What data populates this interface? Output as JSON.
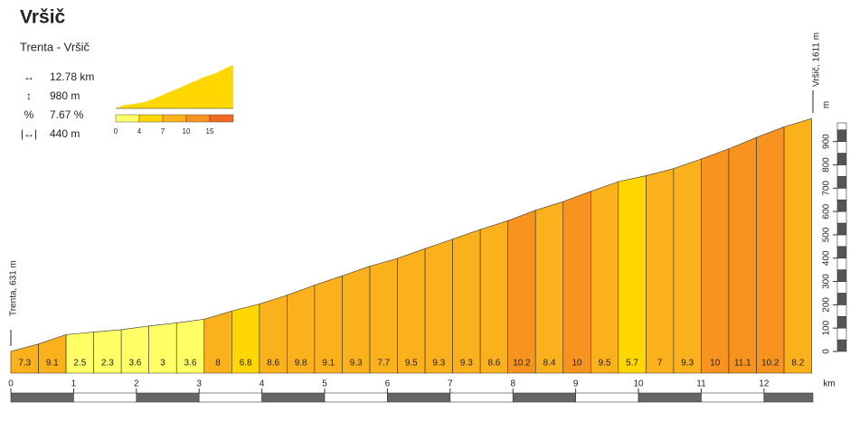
{
  "chart_data": {
    "type": "profile",
    "title": "Vršič",
    "subtitle": "Trenta - Vršič",
    "start_label": "Trenta, 631 m",
    "end_label": "Vršič, 1611 m",
    "stats": [
      {
        "icon": "↔",
        "label": "12.78 km"
      },
      {
        "icon": "↕",
        "label": "980 m"
      },
      {
        "icon": "%",
        "label": "7.67 %"
      },
      {
        "icon": "|↔|",
        "label": "440 m",
        "value": 0.44
      }
    ],
    "values": [
      7.3,
      9.1,
      2.5,
      2.3,
      3.6,
      3,
      3.6,
      8,
      6.8,
      8.6,
      9.8,
      9.1,
      9.3,
      7.7,
      9.5,
      9.3,
      9.3,
      8.6,
      10.2,
      8.4,
      10,
      9.5,
      5.7,
      7,
      9.3,
      10,
      11.1,
      10.2,
      8.2
    ],
    "scale": {
      "ticks": [
        0,
        4,
        7,
        10,
        15
      ],
      "colors": [
        "#ffff66",
        "#ffd700",
        "#fbb11c",
        "#f7931e",
        "#f26a22"
      ]
    },
    "xlim": [
      0,
      12.78
    ],
    "xticks": [
      0,
      1,
      2,
      3,
      4,
      5,
      6,
      7,
      8,
      9,
      10,
      11,
      12
    ],
    "xlabel": "km",
    "ylim": [
      0,
      980
    ],
    "yticks": [
      0,
      100,
      200,
      300,
      400,
      500,
      600,
      700,
      800,
      900
    ],
    "ylabel": "m"
  }
}
